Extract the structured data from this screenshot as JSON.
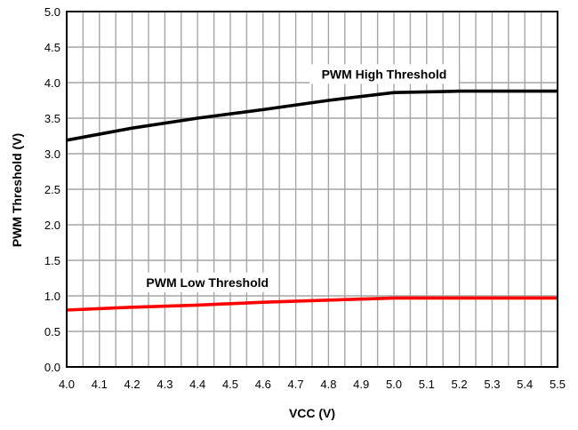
{
  "chart_data": {
    "type": "line",
    "title": "",
    "xlabel": "VCC (V)",
    "ylabel": "PWM Threshold (V)",
    "xlim": [
      4.0,
      5.5
    ],
    "ylim": [
      0.0,
      5.0
    ],
    "grid": true,
    "legend": "none",
    "x_ticks": [
      4.0,
      4.1,
      4.2,
      4.3,
      4.4,
      4.5,
      4.6,
      4.7,
      4.8,
      4.9,
      5.0,
      5.1,
      5.2,
      5.3,
      5.4,
      5.5
    ],
    "x_tick_labels": [
      "4.0",
      "4.1",
      "4.2",
      "4.3",
      "4.4",
      "4.5",
      "4.6",
      "4.7",
      "4.8",
      "4.9",
      "5.0",
      "5.1",
      "5.2",
      "5.3",
      "5.4",
      "5.5"
    ],
    "y_ticks": [
      0.0,
      0.5,
      1.0,
      1.5,
      2.0,
      2.5,
      3.0,
      3.5,
      4.0,
      4.5,
      5.0
    ],
    "y_tick_labels": [
      "0.0",
      "0.5",
      "1.0",
      "1.5",
      "2.0",
      "2.5",
      "3.0",
      "3.5",
      "4.0",
      "4.5",
      "5.0"
    ],
    "series": [
      {
        "name": "PWM High Threshold",
        "color": "#000000",
        "x": [
          4.0,
          4.2,
          4.4,
          4.6,
          4.8,
          5.0,
          5.2,
          5.5
        ],
        "y": [
          3.19,
          3.36,
          3.5,
          3.62,
          3.75,
          3.86,
          3.88,
          3.88
        ]
      },
      {
        "name": "PWM Low Threshold",
        "color": "#ff0000",
        "x": [
          4.0,
          4.2,
          4.4,
          4.6,
          4.8,
          5.0,
          5.2,
          5.5
        ],
        "y": [
          0.8,
          0.84,
          0.87,
          0.91,
          0.94,
          0.97,
          0.97,
          0.97
        ]
      }
    ]
  }
}
